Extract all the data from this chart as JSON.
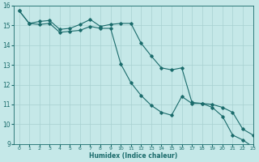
{
  "xlabel": "Humidex (Indice chaleur)",
  "background_color": "#c5e8e8",
  "grid_color": "#a8d0d0",
  "line_color": "#1a6b6b",
  "xlim": [
    -0.5,
    23
  ],
  "ylim": [
    9,
    16
  ],
  "xticks": [
    0,
    1,
    2,
    3,
    4,
    5,
    6,
    7,
    8,
    9,
    10,
    11,
    12,
    13,
    14,
    15,
    16,
    17,
    18,
    19,
    20,
    21,
    22,
    23
  ],
  "yticks": [
    9,
    10,
    11,
    12,
    13,
    14,
    15,
    16
  ],
  "line1_x": [
    0,
    1,
    2,
    3,
    4,
    5,
    6,
    7,
    8,
    9,
    10,
    11,
    12,
    13,
    14,
    15,
    16,
    17,
    18,
    19,
    20,
    21,
    22,
    23
  ],
  "line1_y": [
    15.75,
    15.1,
    15.2,
    15.25,
    14.8,
    14.85,
    15.05,
    15.3,
    14.95,
    15.05,
    15.1,
    15.1,
    14.1,
    13.45,
    12.85,
    12.75,
    12.85,
    11.1,
    11.05,
    11.0,
    10.85,
    10.6,
    9.75,
    9.45
  ],
  "line2_x": [
    0,
    1,
    2,
    3,
    4,
    5,
    6,
    7,
    8,
    9,
    10,
    11,
    12,
    13,
    14,
    15,
    16,
    17,
    18,
    19,
    20,
    21,
    22,
    23
  ],
  "line2_y": [
    15.75,
    15.1,
    15.05,
    15.1,
    14.65,
    14.7,
    14.75,
    14.95,
    14.85,
    14.85,
    13.05,
    12.1,
    11.45,
    10.95,
    10.6,
    10.45,
    11.4,
    11.05,
    11.05,
    10.85,
    10.4,
    9.45,
    9.2,
    8.85
  ]
}
